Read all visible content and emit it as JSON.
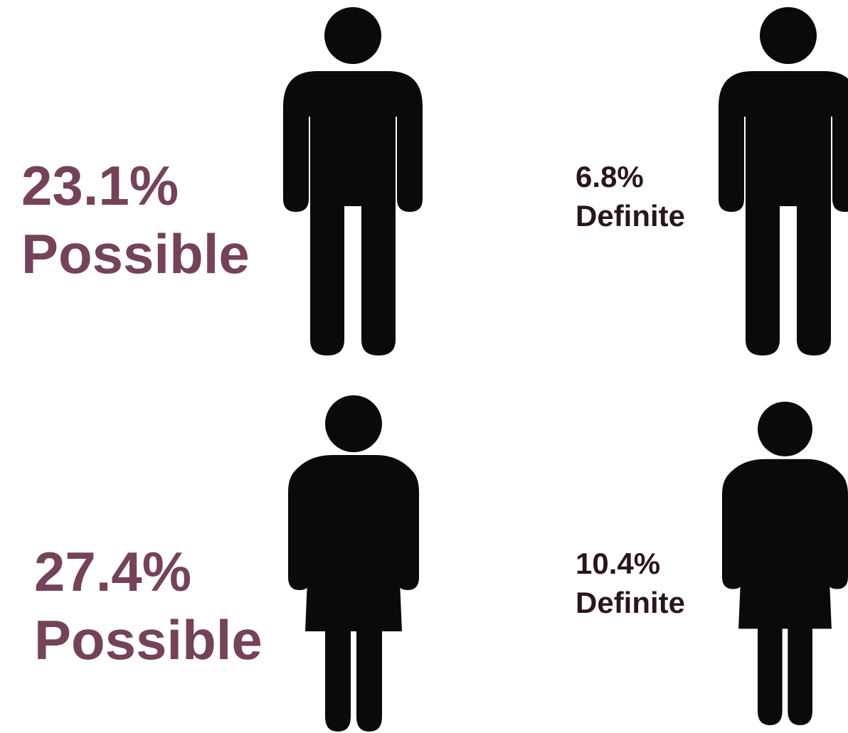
{
  "colors": {
    "possible": "#744359",
    "definite": "#2a1620",
    "figure": "#0a0a0a"
  },
  "male": {
    "possible_value": "23.1%",
    "possible_label": "Possible",
    "definite_value": "6.8%",
    "definite_label": "Definite",
    "icon": "male-person-icon"
  },
  "female": {
    "possible_value": "27.4%",
    "possible_label": "Possible",
    "definite_value": "10.4%",
    "definite_label": "Definite",
    "icon": "female-person-icon"
  }
}
